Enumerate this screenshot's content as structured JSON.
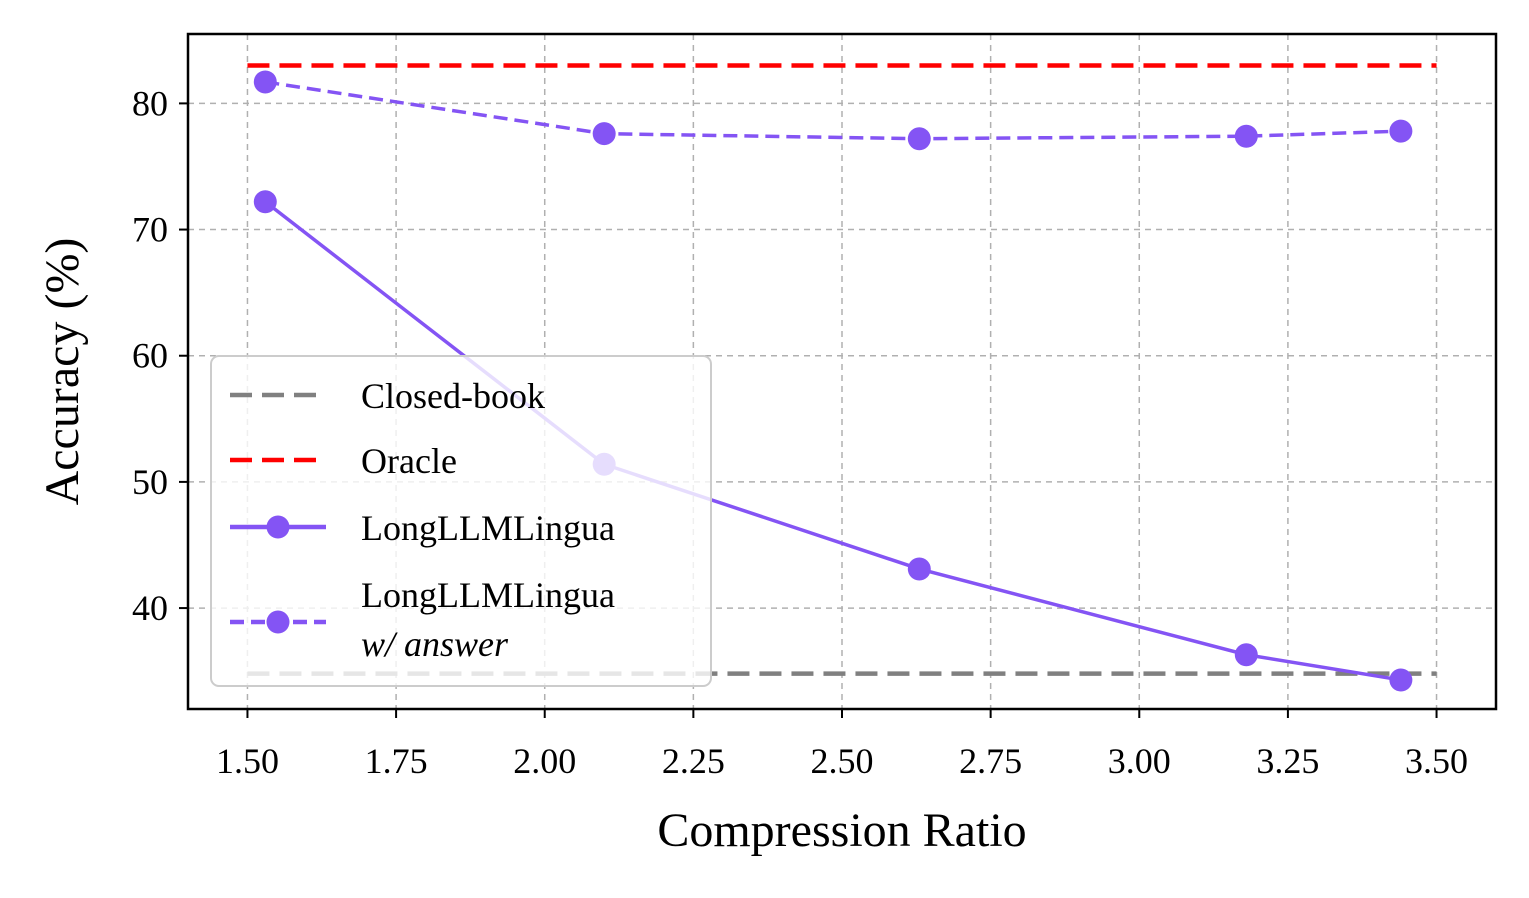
{
  "chart_data": {
    "type": "line",
    "xlabel": "Compression Ratio",
    "ylabel": "Accuracy (%)",
    "xlim": [
      1.4,
      3.6
    ],
    "ylim": [
      32.0,
      85.5
    ],
    "x_ticks": [
      1.5,
      1.75,
      2.0,
      2.25,
      2.5,
      2.75,
      3.0,
      3.25,
      3.5
    ],
    "x_tick_labels": [
      "1.50",
      "1.75",
      "2.00",
      "2.25",
      "2.50",
      "2.75",
      "3.00",
      "3.25",
      "3.50"
    ],
    "y_ticks": [
      40,
      50,
      60,
      70,
      80
    ],
    "y_tick_labels": [
      "40",
      "50",
      "60",
      "70",
      "80"
    ],
    "grid": true,
    "legend_position": "lower-left",
    "reference_lines": [
      {
        "name": "Closed-book",
        "y": 34.8,
        "x_range": [
          1.5,
          3.5
        ],
        "color": "#808080",
        "style": "dashed"
      },
      {
        "name": "Oracle",
        "y": 83.0,
        "x_range": [
          1.5,
          3.5
        ],
        "color": "#ff0000",
        "style": "dashed"
      }
    ],
    "series": [
      {
        "name": "LongLLMLingua",
        "color": "#8454f4",
        "style": "solid",
        "x": [
          1.53,
          2.1,
          2.63,
          3.18,
          3.44
        ],
        "y": [
          72.2,
          51.4,
          43.1,
          36.3,
          34.3
        ]
      },
      {
        "name": "LongLLMLingua",
        "name_line2": "w/ answer",
        "color": "#8454f4",
        "style": "dashed",
        "x": [
          1.53,
          2.1,
          2.63,
          3.18,
          3.44
        ],
        "y": [
          81.7,
          77.6,
          77.2,
          77.4,
          77.8
        ]
      }
    ]
  }
}
